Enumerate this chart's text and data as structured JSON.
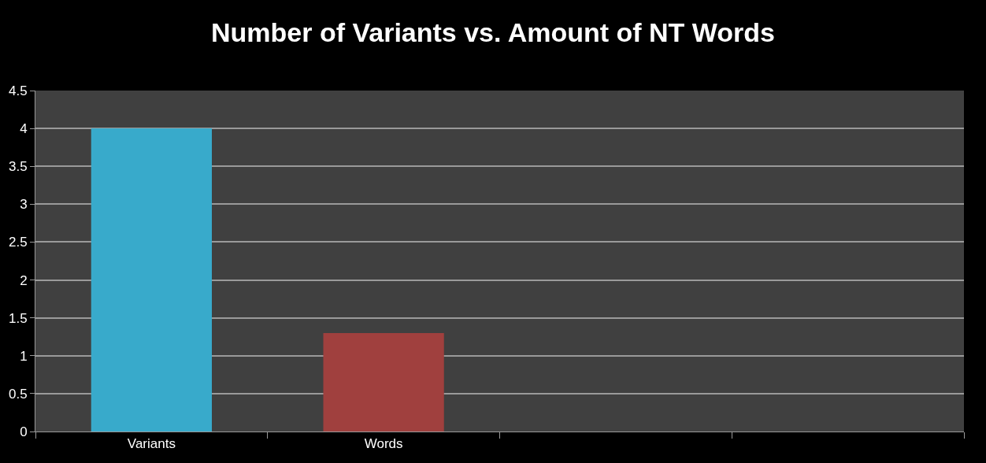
{
  "chart_data": {
    "type": "bar",
    "title": "Number of Variants vs. Amount of NT Words",
    "categories": [
      "Variants",
      "Words",
      null,
      null
    ],
    "values": [
      4,
      1.3,
      null,
      null
    ],
    "colors": [
      "#38aacb",
      "#a0403e",
      "#38aacb",
      "#a0403e"
    ],
    "ylim": [
      0,
      4.5
    ],
    "yticks": [
      0,
      0.5,
      1,
      1.5,
      2,
      2.5,
      3,
      3.5,
      4,
      4.5
    ],
    "grid": "y"
  }
}
